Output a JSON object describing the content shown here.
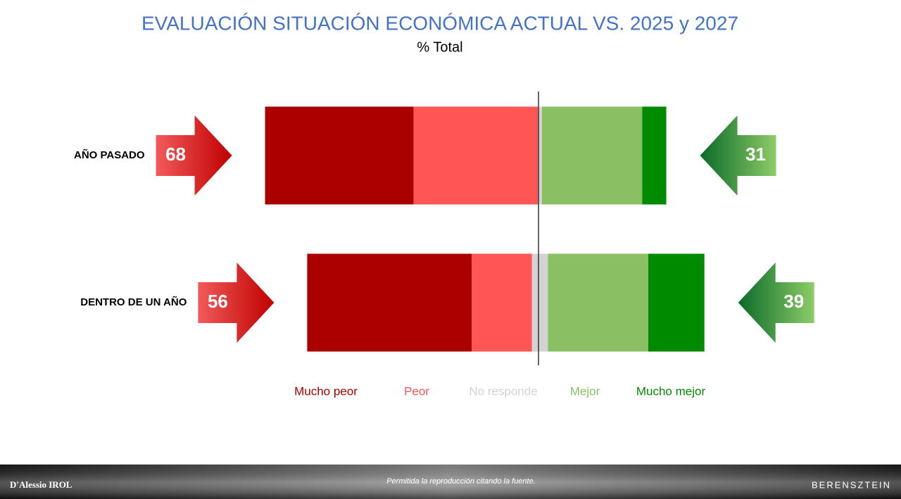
{
  "chart_data": {
    "type": "diverging-bar",
    "title": "EVALUACIÓN SITUACIÓN ECONÓMICA ACTUAL VS. 2025 y 2027",
    "subtitle": "% Total",
    "categories": [
      "AÑO PASADO",
      "DENTRO DE UN AÑO"
    ],
    "series": [
      {
        "name": "Mucho peor",
        "color": "#aa0000",
        "values": [
          37,
          41
        ]
      },
      {
        "name": "Peor",
        "color": "#ff5555",
        "values": [
          31,
          15
        ]
      },
      {
        "name": "No responde",
        "color": "#d3d3d3",
        "values": [
          1,
          4
        ]
      },
      {
        "name": "Mejor",
        "color": "#8abf63",
        "values": [
          25,
          25
        ]
      },
      {
        "name": "Mucho mejor",
        "color": "#008a00",
        "values": [
          6,
          14
        ]
      }
    ],
    "totals": {
      "negative": [
        68,
        56
      ],
      "positive": [
        31,
        39
      ]
    }
  },
  "footer": {
    "source": "Permitida la reproducción citando la fuente.",
    "left_logo": "D'Alessio IROL",
    "right_logo": "BERENSZTEIN"
  }
}
